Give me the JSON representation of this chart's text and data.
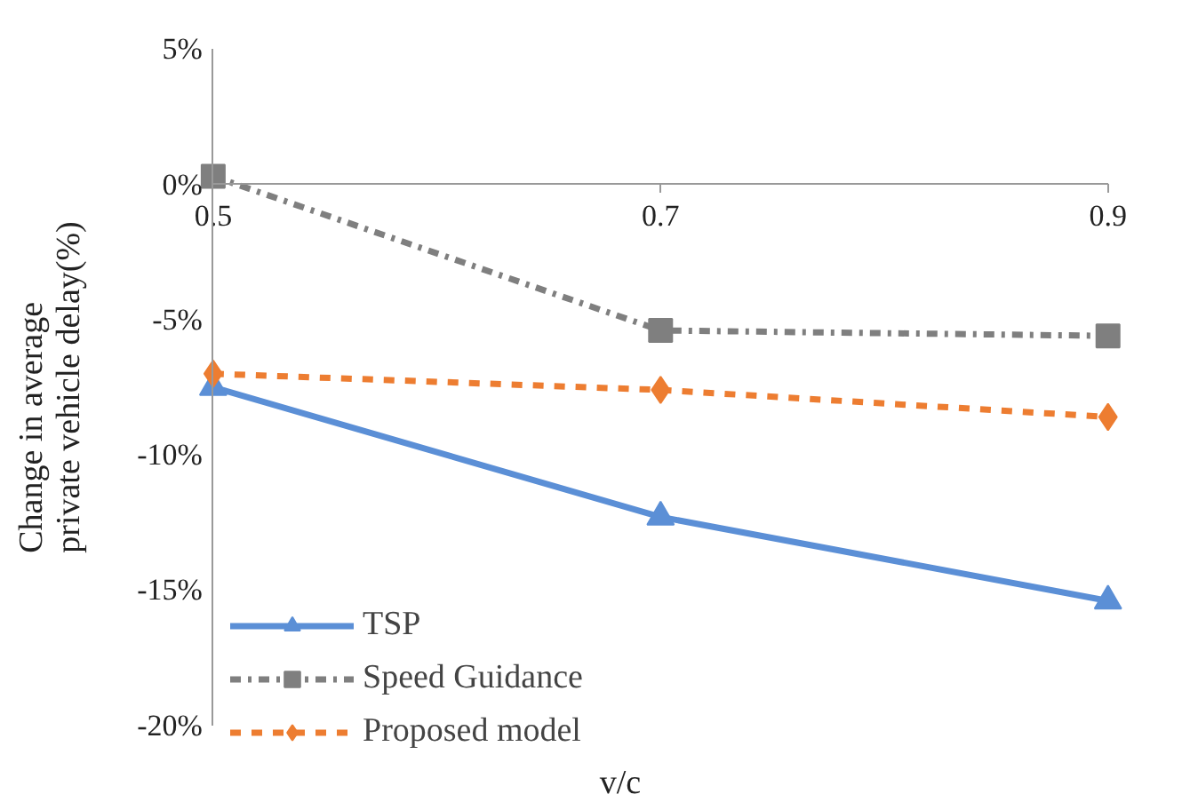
{
  "chart_data": {
    "type": "line",
    "xlabel": "v/c",
    "ylabel": "Change in average private vehicle delay(%)",
    "x": [
      0.5,
      0.7,
      0.9
    ],
    "xlim": [
      0.5,
      0.9
    ],
    "xticks": [
      0.5,
      0.7,
      0.9
    ],
    "ylim": [
      -20,
      5
    ],
    "yticks": [
      {
        "value": -20,
        "label": "-20%"
      },
      {
        "value": -15,
        "label": "-15%"
      },
      {
        "value": -10,
        "label": "-10%"
      },
      {
        "value": -5,
        "label": "-5%"
      },
      {
        "value": 0,
        "label": "0%"
      },
      {
        "value": 5,
        "label": "5%"
      }
    ],
    "series": [
      {
        "name": "TSP",
        "color": "#5b8fd6",
        "values": [
          -7.5,
          -12.3,
          -15.4
        ],
        "marker": "triangle",
        "line_style": "solid"
      },
      {
        "name": "Speed Guidance",
        "color": "#7f7f7f",
        "values": [
          0.3,
          -5.4,
          -5.6
        ],
        "marker": "square",
        "line_style": "dashdot"
      },
      {
        "name": "Proposed model",
        "color": "#ed7d31",
        "values": [
          -7.0,
          -7.6,
          -8.6
        ],
        "marker": "diamond",
        "line_style": "dashed"
      }
    ],
    "grid": false,
    "legend": "bottom left"
  }
}
